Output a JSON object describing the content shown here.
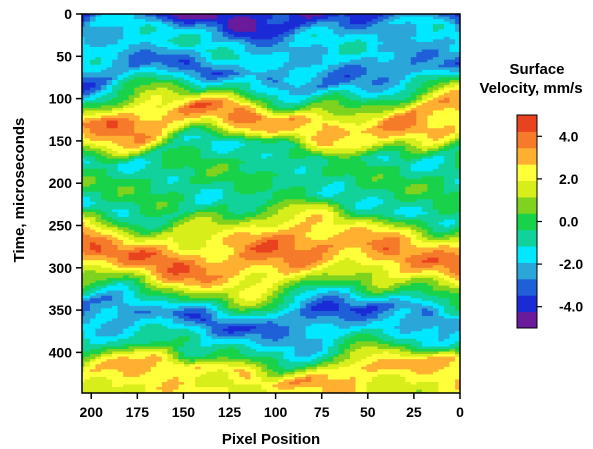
{
  "chart_data": {
    "type": "heatmap",
    "title": "",
    "xlabel": "Pixel Position",
    "ylabel": "Time, microseconds",
    "xlim": [
      205,
      0
    ],
    "ylim": [
      0,
      448
    ],
    "x_ticks": [
      "200",
      "175",
      "150",
      "125",
      "100",
      "75",
      "50",
      "25",
      "0"
    ],
    "x_tick_values": [
      200,
      175,
      150,
      125,
      100,
      75,
      50,
      25,
      0
    ],
    "y_ticks": [
      "0",
      "50",
      "100",
      "150",
      "200",
      "250",
      "300",
      "350",
      "400"
    ],
    "y_tick_values": [
      0,
      50,
      100,
      150,
      200,
      250,
      300,
      350,
      400
    ],
    "colorbar": {
      "title_line1": "Surface",
      "title_line2": "Velocity, mm/s",
      "tick_labels": [
        "4.0",
        "2.0",
        "0.0",
        "-2.0",
        "-4.0"
      ],
      "tick_values": [
        4.0,
        2.0,
        0.0,
        -2.0,
        -4.0
      ],
      "range": [
        -5.0,
        5.0
      ],
      "colors": [
        "#6a1a9a",
        "#1a2bd6",
        "#1f5fd8",
        "#2aa6d8",
        "#00e8ff",
        "#10d29a",
        "#18d24a",
        "#7fd21e",
        "#d8ee1a",
        "#ffff3a",
        "#ffb030",
        "#f57a2a",
        "#e8421e"
      ]
    },
    "time_profile": [
      {
        "t": 0,
        "v": -4.2
      },
      {
        "t": 20,
        "v": -2.0
      },
      {
        "t": 45,
        "v": -1.5
      },
      {
        "t": 70,
        "v": -3.0
      },
      {
        "t": 100,
        "v": 0.5
      },
      {
        "t": 120,
        "v": 3.6
      },
      {
        "t": 140,
        "v": 2.5
      },
      {
        "t": 160,
        "v": -0.8
      },
      {
        "t": 190,
        "v": -0.2
      },
      {
        "t": 225,
        "v": -0.8
      },
      {
        "t": 250,
        "v": 1.8
      },
      {
        "t": 280,
        "v": 3.8
      },
      {
        "t": 300,
        "v": 3.0
      },
      {
        "t": 330,
        "v": 0.0
      },
      {
        "t": 355,
        "v": -3.2
      },
      {
        "t": 380,
        "v": -1.5
      },
      {
        "t": 400,
        "v": -0.5
      },
      {
        "t": 420,
        "v": 3.0
      },
      {
        "t": 440,
        "v": 2.0
      }
    ]
  }
}
